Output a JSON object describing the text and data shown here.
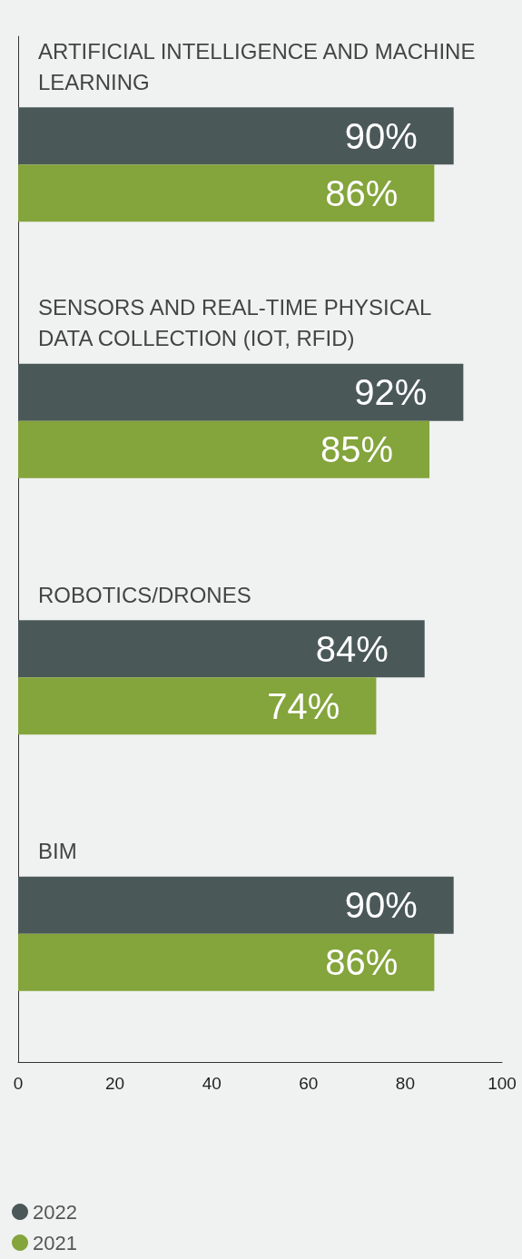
{
  "chart_data": {
    "type": "bar",
    "orientation": "horizontal",
    "categories": [
      "ARTIFICIAL INTELLIGENCE AND MACHINE LEARNING",
      "SENSORS AND REAL-TIME PHYSICAL DATA COLLECTION (IOT, RFID)",
      "ROBOTICS/DRONES",
      "BIM"
    ],
    "series": [
      {
        "name": "2022",
        "color": "#4b5858",
        "values": [
          90,
          92,
          84,
          90
        ],
        "value_labels": [
          "90%",
          "92%",
          "84%",
          "90%"
        ]
      },
      {
        "name": "2021",
        "color": "#84a43c",
        "values": [
          86,
          85,
          74,
          86
        ],
        "value_labels": [
          "86%",
          "85%",
          "74%",
          "86%"
        ]
      }
    ],
    "xlim": [
      0,
      100
    ],
    "xticks": [
      0,
      20,
      40,
      60,
      80,
      100
    ],
    "grid": false,
    "legend": "bottom left"
  }
}
